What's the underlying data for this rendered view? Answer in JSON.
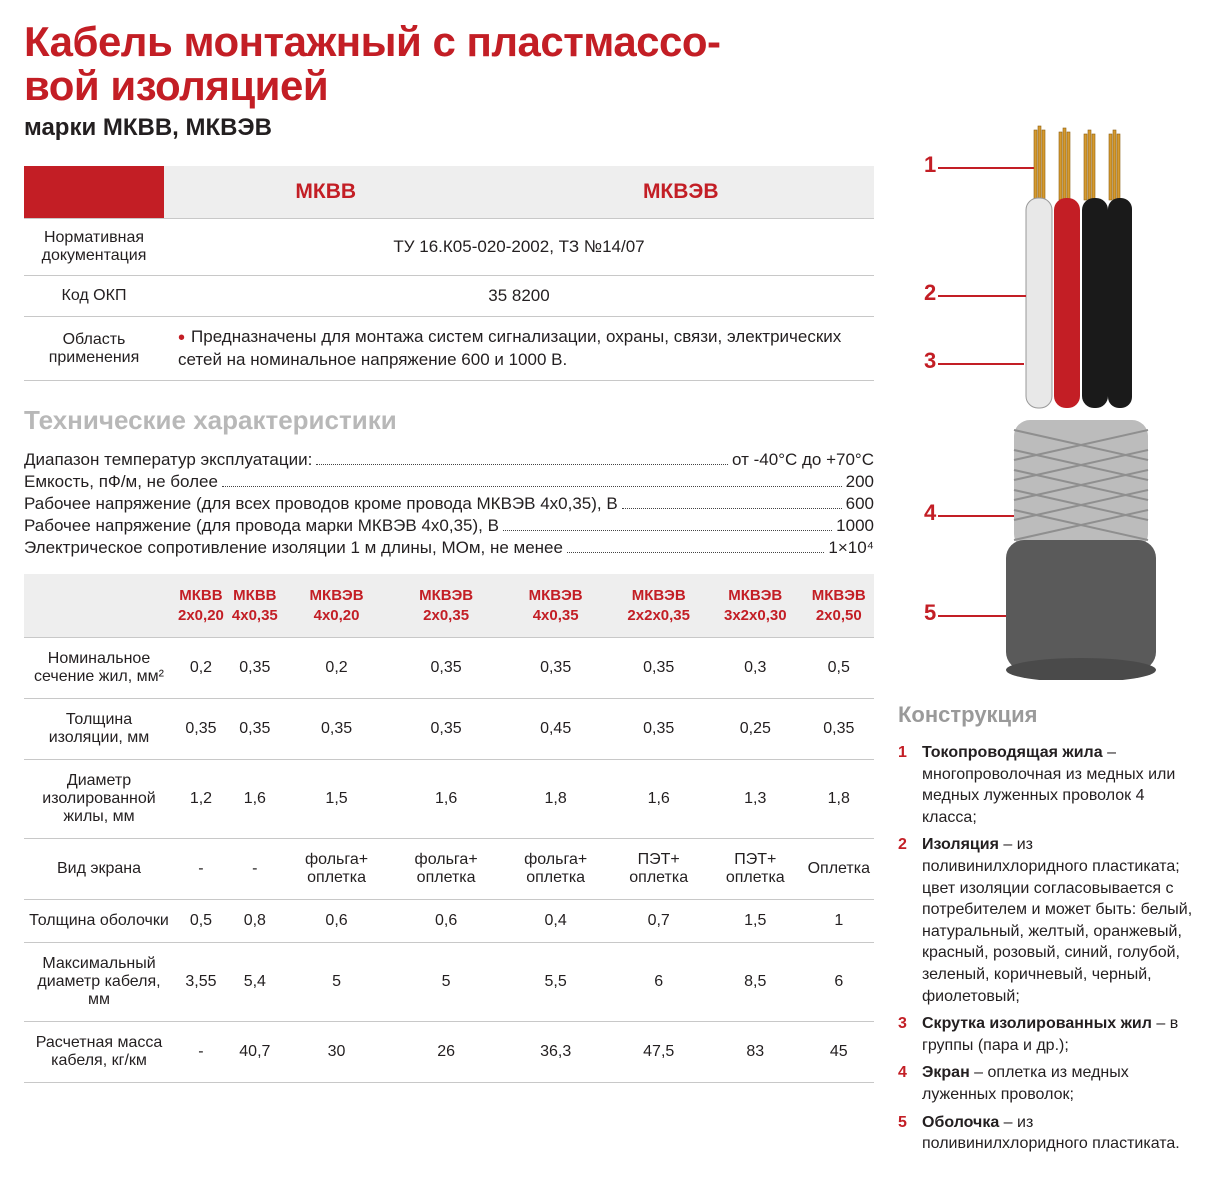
{
  "title_line1": "Кабель монтажный с пластмассо-",
  "title_line2": "вой изоляцией",
  "subtitle": "марки МКВВ, МКВЭВ",
  "colors": {
    "accent": "#c31e25",
    "header_bg": "#eeeeee",
    "border": "#c8c8c8",
    "muted": "#b8b8b8"
  },
  "main_table": {
    "cols": [
      "МКВВ",
      "МКВЭВ"
    ],
    "rows": [
      {
        "label": "Нормативная документация",
        "value": "ТУ 16.К05-020-2002, ТЗ №14/07"
      },
      {
        "label": "Код ОКП",
        "value": "35 8200"
      },
      {
        "label": "Область применения",
        "value": "Предназначены для монтажа систем сигнализации, охраны, связи, электрических сетей на номинальное напряжение 600 и 1000 В."
      }
    ]
  },
  "tech_title": "Технические характеристики",
  "tech_specs": [
    {
      "label": "Диапазон температур эксплуатации:",
      "value": "от -40°C до +70°C"
    },
    {
      "label": "Емкость, пФ/м, не более",
      "value": "200"
    },
    {
      "label": "Рабочее напряжение (для всех проводов кроме провода МКВЭВ 4х0,35), В",
      "value": "600"
    },
    {
      "label": "Рабочее напряжение (для провода марки МКВЭВ 4х0,35), В",
      "value": "1000"
    },
    {
      "label": "Электрическое сопротивление изоляции 1 м длины, МОм, не менее",
      "value": "1×10⁴"
    }
  ],
  "data_table": {
    "columns": [
      "МКВВ 2х0,20",
      "МКВВ 4х0,35",
      "МКВЭВ 4х0,20",
      "МКВЭВ 2х0,35",
      "МКВЭВ 4х0,35",
      "МКВЭВ 2х2х0,35",
      "МКВЭВ 3х2х0,30",
      "МКВЭВ 2х0,50"
    ],
    "rows": [
      {
        "label": "Номинальное сечение жил, мм²",
        "cells": [
          "0,2",
          "0,35",
          "0,2",
          "0,35",
          "0,35",
          "0,35",
          "0,3",
          "0,5"
        ]
      },
      {
        "label": "Толщина изоляции, мм",
        "cells": [
          "0,35",
          "0,35",
          "0,35",
          "0,35",
          "0,45",
          "0,35",
          "0,25",
          "0,35"
        ]
      },
      {
        "label": "Диаметр изолированной жилы, мм",
        "cells": [
          "1,2",
          "1,6",
          "1,5",
          "1,6",
          "1,8",
          "1,6",
          "1,3",
          "1,8"
        ]
      },
      {
        "label": "Вид экрана",
        "cells": [
          "-",
          "-",
          "фольга+ оплетка",
          "фольга+ оплетка",
          "фольга+ оплетка",
          "ПЭТ+ оплетка",
          "ПЭТ+ оплетка",
          "Оплетка"
        ]
      },
      {
        "label": "Толщина оболочки",
        "cells": [
          "0,5",
          "0,8",
          "0,6",
          "0,6",
          "0,4",
          "0,7",
          "1,5",
          "1"
        ]
      },
      {
        "label": "Максимальный диаметр кабеля, мм",
        "cells": [
          "3,55",
          "5,4",
          "5",
          "5",
          "5,5",
          "6",
          "8,5",
          "6"
        ]
      },
      {
        "label": "Расчетная масса кабеля, кг/км",
        "cells": [
          "-",
          "40,7",
          "30",
          "26",
          "36,3",
          "47,5",
          "83",
          "45"
        ]
      }
    ]
  },
  "construction": {
    "title": "Конструкция",
    "items": [
      {
        "n": "1",
        "term": "Токопроводящая жила",
        "text": " – многопроволочная из медных или медных луженных проволок 4 класса;"
      },
      {
        "n": "2",
        "term": "Изоляция",
        "text": " – из поливинилхлоридного пластиката; цвет изоляции согласовывается с потребителем и может быть: белый, натуральный, желтый, оранжевый, красный, розовый, синий, голубой, зеленый, коричневый, черный, фиолетовый;"
      },
      {
        "n": "3",
        "term": "Скрутка изолированных жил",
        "text": " – в группы (пара и др.);"
      },
      {
        "n": "4",
        "term": "Экран",
        "text": " – оплетка из медных луженных проволок;"
      },
      {
        "n": "5",
        "term": "Оболочка",
        "text": " – из поливинилхлоридного пластиката."
      }
    ]
  },
  "diagram": {
    "callouts": [
      "1",
      "2",
      "3",
      "4",
      "5"
    ],
    "strand_color": "#d69a2e",
    "wire_colors": [
      "#e8e8e8",
      "#c31e25",
      "#1a1a1a"
    ],
    "shield_color": "#bcbcbc",
    "jacket_color": "#5a5a5a"
  }
}
